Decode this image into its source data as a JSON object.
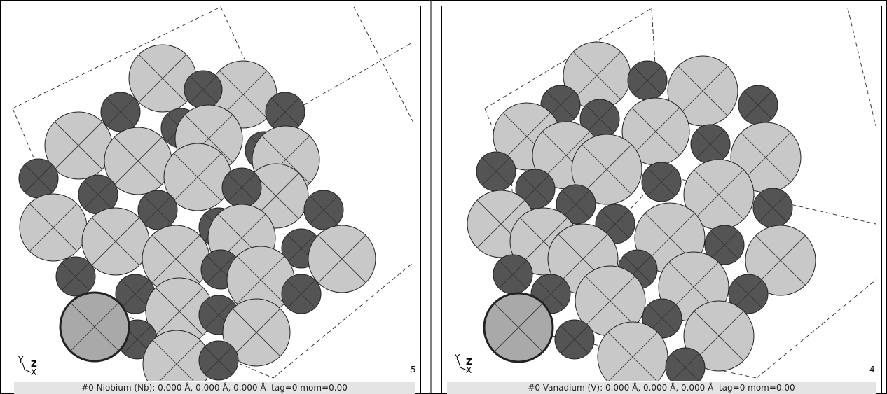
{
  "panels": [
    {
      "status": "#0 Niobium (Nb): 0.000 Å, 0.000 Å, 0.000 Å  tag=0 mom=0.00",
      "frame": "5",
      "axes": {
        "y": "Y",
        "z": "Z",
        "x": "X"
      }
    },
    {
      "status": "#0 Vanadium (V): 0.000 Å, 0.000 Å, 0.000 Å  tag=0 mom=0.00",
      "frame": "4",
      "axes": {
        "y": "Y",
        "z": "Z",
        "x": "X"
      }
    }
  ]
}
